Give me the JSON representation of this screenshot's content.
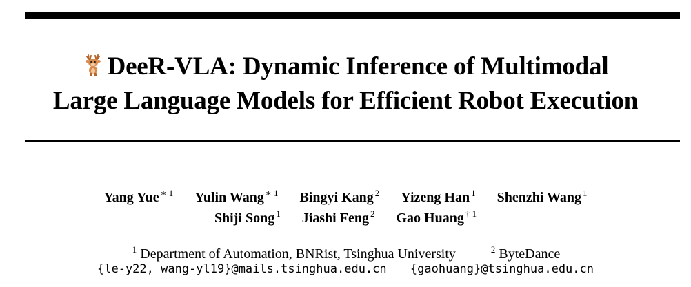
{
  "title": {
    "line1": "DeeR-VLA: Dynamic Inference of Multimodal",
    "line2": "Large Language Models for Efficient Robot Execution"
  },
  "authors": {
    "row1": [
      {
        "name": "Yang Yue",
        "mark": "∗ 1"
      },
      {
        "name": "Yulin Wang",
        "mark": "∗ 1"
      },
      {
        "name": "Bingyi Kang",
        "mark": "2"
      },
      {
        "name": "Yizeng Han",
        "mark": "1"
      },
      {
        "name": "Shenzhi Wang",
        "mark": "1"
      }
    ],
    "row2": [
      {
        "name": "Shiji Song",
        "mark": "1"
      },
      {
        "name": "Jiashi Feng",
        "mark": "2"
      },
      {
        "name": "Gao Huang",
        "mark": "† 1"
      }
    ]
  },
  "affiliations": [
    {
      "mark": "1",
      "text": "Department of Automation, BNRist, Tsinghua University"
    },
    {
      "mark": "2",
      "text": "ByteDance"
    }
  ],
  "emails": [
    "{le-y22, wang-yl19}@mails.tsinghua.edu.cn",
    "{gaohuang}@tsinghua.edu.cn"
  ],
  "colors": {
    "deer_body": "#d98a4a",
    "deer_antler": "#b5652a",
    "deer_face": "#f1c9a0"
  },
  "icons": {
    "title_logo": "deer-icon"
  }
}
